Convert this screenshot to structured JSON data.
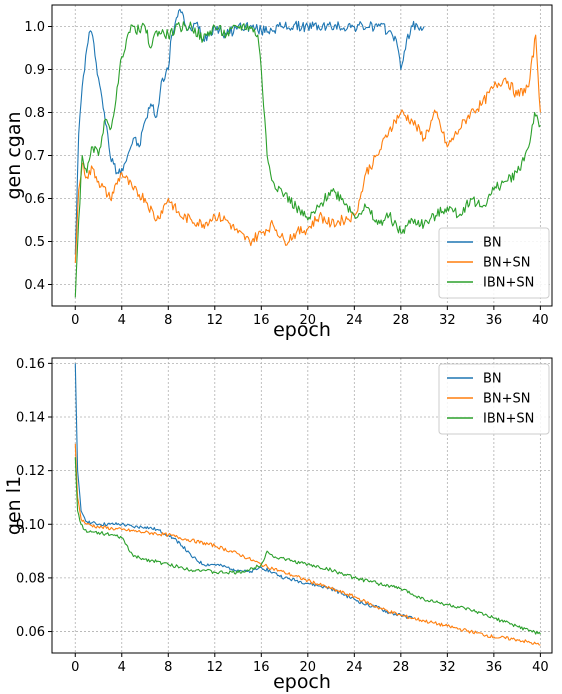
{
  "chart_data": [
    {
      "type": "line",
      "title": "",
      "xlabel": "epoch",
      "ylabel": "gen cgan",
      "xlim": [
        -2,
        41
      ],
      "ylim": [
        0.35,
        1.05
      ],
      "xticks": [
        0,
        4,
        8,
        12,
        16,
        20,
        24,
        28,
        32,
        36,
        40
      ],
      "yticks": [
        0.4,
        0.5,
        0.6,
        0.7,
        0.8,
        0.9,
        1.0
      ],
      "ytick_labels": [
        "0.4",
        "0.5",
        "0.6",
        "0.7",
        "0.8",
        "0.9",
        "1.0"
      ],
      "grid": true,
      "legend_position": "lower-right",
      "series": [
        {
          "name": "BN",
          "color": "#1f77b4",
          "x": [
            0,
            0.3,
            0.6,
            1,
            1.3,
            1.6,
            2,
            2.5,
            3,
            3.3,
            3.6,
            4,
            4.5,
            5,
            5.5,
            6,
            6.5,
            7,
            7.5,
            8,
            8.3,
            8.7,
            9,
            9.5,
            10,
            10.5,
            11,
            12,
            13,
            14,
            15,
            16,
            18,
            20,
            22,
            24,
            26,
            27,
            27.6,
            28,
            28.5,
            29,
            30
          ],
          "y": [
            0.47,
            0.75,
            0.86,
            0.95,
            0.99,
            0.96,
            0.88,
            0.8,
            0.7,
            0.68,
            0.66,
            0.67,
            0.7,
            0.74,
            0.72,
            0.78,
            0.82,
            0.79,
            0.88,
            0.9,
            0.98,
            1.02,
            1.04,
            1.0,
            0.99,
            1.01,
            0.97,
            1.0,
            0.98,
            1.0,
            1.0,
            0.99,
            1.0,
            1.0,
            1.0,
            1.0,
            1.0,
            0.99,
            0.97,
            0.9,
            0.97,
            1.0,
            1.0
          ]
        },
        {
          "name": "BN+SN",
          "color": "#ff7f0e",
          "x": [
            0,
            0.3,
            0.6,
            1,
            1.5,
            2,
            3,
            4,
            5,
            6,
            7,
            8,
            9,
            10,
            11,
            12,
            13,
            14,
            15,
            16,
            17,
            18,
            19,
            20,
            21,
            22,
            23,
            24,
            24.5,
            25,
            26,
            27,
            28,
            29,
            30,
            31,
            32,
            33,
            34,
            35,
            36,
            37,
            38,
            39,
            39.6,
            40
          ],
          "y": [
            0.45,
            0.62,
            0.68,
            0.65,
            0.67,
            0.64,
            0.6,
            0.66,
            0.62,
            0.6,
            0.55,
            0.6,
            0.56,
            0.55,
            0.54,
            0.56,
            0.55,
            0.52,
            0.5,
            0.52,
            0.54,
            0.5,
            0.52,
            0.53,
            0.56,
            0.54,
            0.55,
            0.56,
            0.6,
            0.66,
            0.7,
            0.76,
            0.8,
            0.78,
            0.74,
            0.8,
            0.72,
            0.76,
            0.8,
            0.82,
            0.86,
            0.88,
            0.84,
            0.86,
            0.98,
            0.8
          ]
        },
        {
          "name": "IBN+SN",
          "color": "#2ca02c",
          "x": [
            0,
            0.3,
            0.6,
            1,
            1.5,
            2,
            2.5,
            3,
            3.5,
            4,
            4.5,
            5,
            5.5,
            6,
            6.5,
            7,
            8,
            9,
            10,
            11,
            12,
            13,
            14,
            15,
            15.7,
            16,
            16.5,
            17,
            18,
            19,
            20,
            21,
            22,
            23,
            24,
            25,
            26,
            27,
            28,
            29,
            30,
            31,
            32,
            33,
            34,
            35,
            36,
            37,
            38,
            39,
            39.5,
            40
          ],
          "y": [
            0.37,
            0.55,
            0.7,
            0.66,
            0.72,
            0.7,
            0.78,
            0.76,
            0.83,
            0.93,
            0.98,
            1.0,
            0.99,
            1.0,
            0.95,
            0.99,
            0.98,
            1.0,
            1.0,
            0.97,
            1.0,
            0.98,
            1.0,
            1.0,
            0.98,
            0.9,
            0.7,
            0.64,
            0.61,
            0.58,
            0.55,
            0.58,
            0.62,
            0.6,
            0.56,
            0.58,
            0.54,
            0.56,
            0.52,
            0.55,
            0.54,
            0.56,
            0.58,
            0.56,
            0.6,
            0.58,
            0.62,
            0.64,
            0.66,
            0.72,
            0.8,
            0.77
          ]
        }
      ]
    },
    {
      "type": "line",
      "title": "",
      "xlabel": "epoch",
      "ylabel": "gen l1",
      "xlim": [
        -2,
        41
      ],
      "ylim": [
        0.052,
        0.162
      ],
      "xticks": [
        0,
        4,
        8,
        12,
        16,
        20,
        24,
        28,
        32,
        36,
        40
      ],
      "yticks": [
        0.06,
        0.08,
        0.1,
        0.12,
        0.14,
        0.16
      ],
      "ytick_labels": [
        "0.06",
        "0.08",
        "0.10",
        "0.12",
        "0.14",
        "0.16"
      ],
      "grid": true,
      "legend_position": "top-right",
      "series": [
        {
          "name": "BN",
          "color": "#1f77b4",
          "x": [
            0,
            0.2,
            0.5,
            1,
            2,
            3,
            4,
            5,
            6,
            7,
            8,
            9,
            10,
            11,
            12,
            13,
            14,
            15,
            16,
            17,
            18,
            19,
            20,
            21,
            22,
            23,
            24,
            25,
            26,
            27,
            28,
            29
          ],
          "y": [
            0.16,
            0.12,
            0.105,
            0.101,
            0.1,
            0.1,
            0.1,
            0.099,
            0.099,
            0.098,
            0.096,
            0.093,
            0.088,
            0.085,
            0.085,
            0.084,
            0.083,
            0.082,
            0.084,
            0.082,
            0.08,
            0.079,
            0.078,
            0.077,
            0.076,
            0.074,
            0.072,
            0.07,
            0.069,
            0.067,
            0.066,
            0.065
          ]
        },
        {
          "name": "BN+SN",
          "color": "#ff7f0e",
          "x": [
            0,
            0.2,
            0.5,
            1,
            2,
            4,
            6,
            8,
            10,
            12,
            14,
            16,
            18,
            20,
            22,
            24,
            26,
            28,
            30,
            32,
            34,
            36,
            38,
            40
          ],
          "y": [
            0.13,
            0.11,
            0.102,
            0.1,
            0.099,
            0.098,
            0.097,
            0.096,
            0.094,
            0.092,
            0.089,
            0.085,
            0.082,
            0.079,
            0.076,
            0.073,
            0.069,
            0.066,
            0.064,
            0.062,
            0.06,
            0.058,
            0.057,
            0.055
          ]
        },
        {
          "name": "IBN+SN",
          "color": "#2ca02c",
          "x": [
            0,
            0.2,
            0.5,
            1,
            2,
            3,
            4,
            5,
            6,
            7,
            8,
            9,
            10,
            11,
            12,
            13,
            14,
            15,
            16,
            16.5,
            17,
            18,
            20,
            22,
            24,
            26,
            28,
            30,
            32,
            34,
            36,
            38,
            40
          ],
          "y": [
            0.125,
            0.105,
            0.1,
            0.097,
            0.097,
            0.096,
            0.095,
            0.088,
            0.087,
            0.086,
            0.085,
            0.084,
            0.083,
            0.083,
            0.082,
            0.082,
            0.082,
            0.083,
            0.085,
            0.09,
            0.088,
            0.087,
            0.085,
            0.083,
            0.08,
            0.078,
            0.076,
            0.072,
            0.07,
            0.068,
            0.065,
            0.062,
            0.059
          ]
        }
      ]
    }
  ]
}
